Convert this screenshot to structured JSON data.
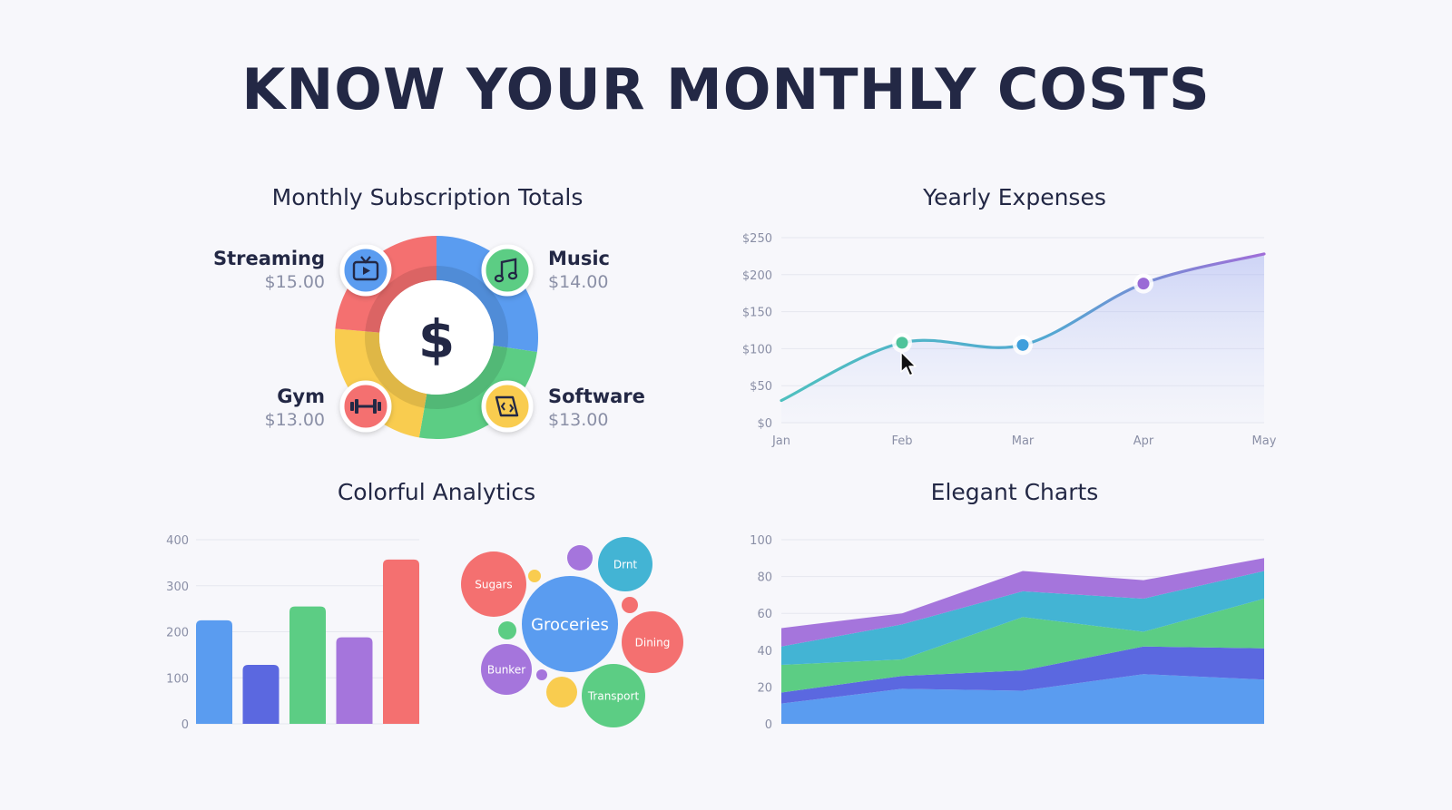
{
  "headline": "KNOW YOUR MONTHLY COSTS",
  "colors": {
    "blue": "#5a9cf0",
    "indigo": "#5b68e0",
    "green": "#5ccd84",
    "purple": "#a575dc",
    "red": "#f47070",
    "yellow": "#f9cc4f",
    "teal": "#43b4d4",
    "line": "#4fb8c4",
    "text": "#232845"
  },
  "chart_data": [
    {
      "type": "pie",
      "title": "Monthly Subscription Totals",
      "center_symbol": "$",
      "slices": [
        {
          "name": "Streaming",
          "value_label": "$15.00",
          "value": 15,
          "color": "#5a9cf0",
          "icon": "tv-icon"
        },
        {
          "name": "Music",
          "value_label": "$14.00",
          "value": 14,
          "color": "#5ccd84",
          "icon": "music-note-icon"
        },
        {
          "name": "Software",
          "value_label": "$13.00",
          "value": 13,
          "color": "#f9cc4f",
          "icon": "code-tablet-icon"
        },
        {
          "name": "Gym",
          "value_label": "$13.00",
          "value": 13,
          "color": "#f47070",
          "icon": "dumbbell-icon"
        }
      ]
    },
    {
      "type": "line",
      "title": "Yearly Expenses",
      "x": [
        "Jan",
        "Feb",
        "Mar",
        "Apr",
        "May"
      ],
      "values": [
        30,
        108,
        105,
        188,
        228
      ],
      "marked_points": [
        1,
        2,
        3
      ],
      "ylim": [
        0,
        250
      ],
      "yticks": [
        "$0",
        "$50",
        "$100",
        "$150",
        "$200",
        "$250"
      ],
      "grid": true
    },
    {
      "type": "bar",
      "title": "Colorful Analytics",
      "values": [
        225,
        128,
        255,
        188,
        357
      ],
      "colors": [
        "#5a9cf0",
        "#5b68e0",
        "#5ccd84",
        "#a575dc",
        "#f47070"
      ],
      "ylim": [
        0,
        400
      ],
      "yticks": [
        "0",
        "100",
        "200",
        "300",
        "400"
      ],
      "grid": true
    },
    {
      "type": "bubble",
      "bubbles": [
        {
          "label": "Groceries",
          "color": "#5a9cf0",
          "size": "large"
        },
        {
          "label": "Sugars",
          "color": "#f47070",
          "size": "medium"
        },
        {
          "label": "Drnt",
          "color": "#43b4d4",
          "size": "medium"
        },
        {
          "label": "Dining",
          "color": "#f47070",
          "size": "medium"
        },
        {
          "label": "Bunker",
          "color": "#a575dc",
          "size": "medium"
        },
        {
          "label": "Transport",
          "color": "#5ccd84",
          "size": "medium"
        },
        {
          "label": "",
          "color": "#a575dc",
          "size": "small"
        },
        {
          "label": "",
          "color": "#f9cc4f",
          "size": "small"
        },
        {
          "label": "",
          "color": "#f47070",
          "size": "small"
        },
        {
          "label": "",
          "color": "#5ccd84",
          "size": "small"
        },
        {
          "label": "",
          "color": "#f9cc4f",
          "size": "small"
        },
        {
          "label": "",
          "color": "#a575dc",
          "size": "tiny"
        }
      ]
    },
    {
      "type": "area",
      "title": "Elegant Charts",
      "stacked": true,
      "x": [
        "1",
        "2",
        "3",
        "4",
        "5"
      ],
      "ylim": [
        0,
        100
      ],
      "yticks": [
        "0",
        "20",
        "40",
        "60",
        "80",
        "100"
      ],
      "grid": true,
      "series": [
        {
          "color": "#5a9cf0",
          "values": [
            11,
            19,
            18,
            27,
            24
          ]
        },
        {
          "color": "#5b68e0",
          "values": [
            6,
            7,
            11,
            15,
            17
          ]
        },
        {
          "color": "#5ccd84",
          "values": [
            15,
            9,
            29,
            8,
            27
          ]
        },
        {
          "color": "#43b4d4",
          "values": [
            10,
            19,
            14,
            18,
            15
          ]
        },
        {
          "color": "#a575dc",
          "values": [
            10,
            6,
            11,
            10,
            7
          ]
        }
      ]
    }
  ]
}
